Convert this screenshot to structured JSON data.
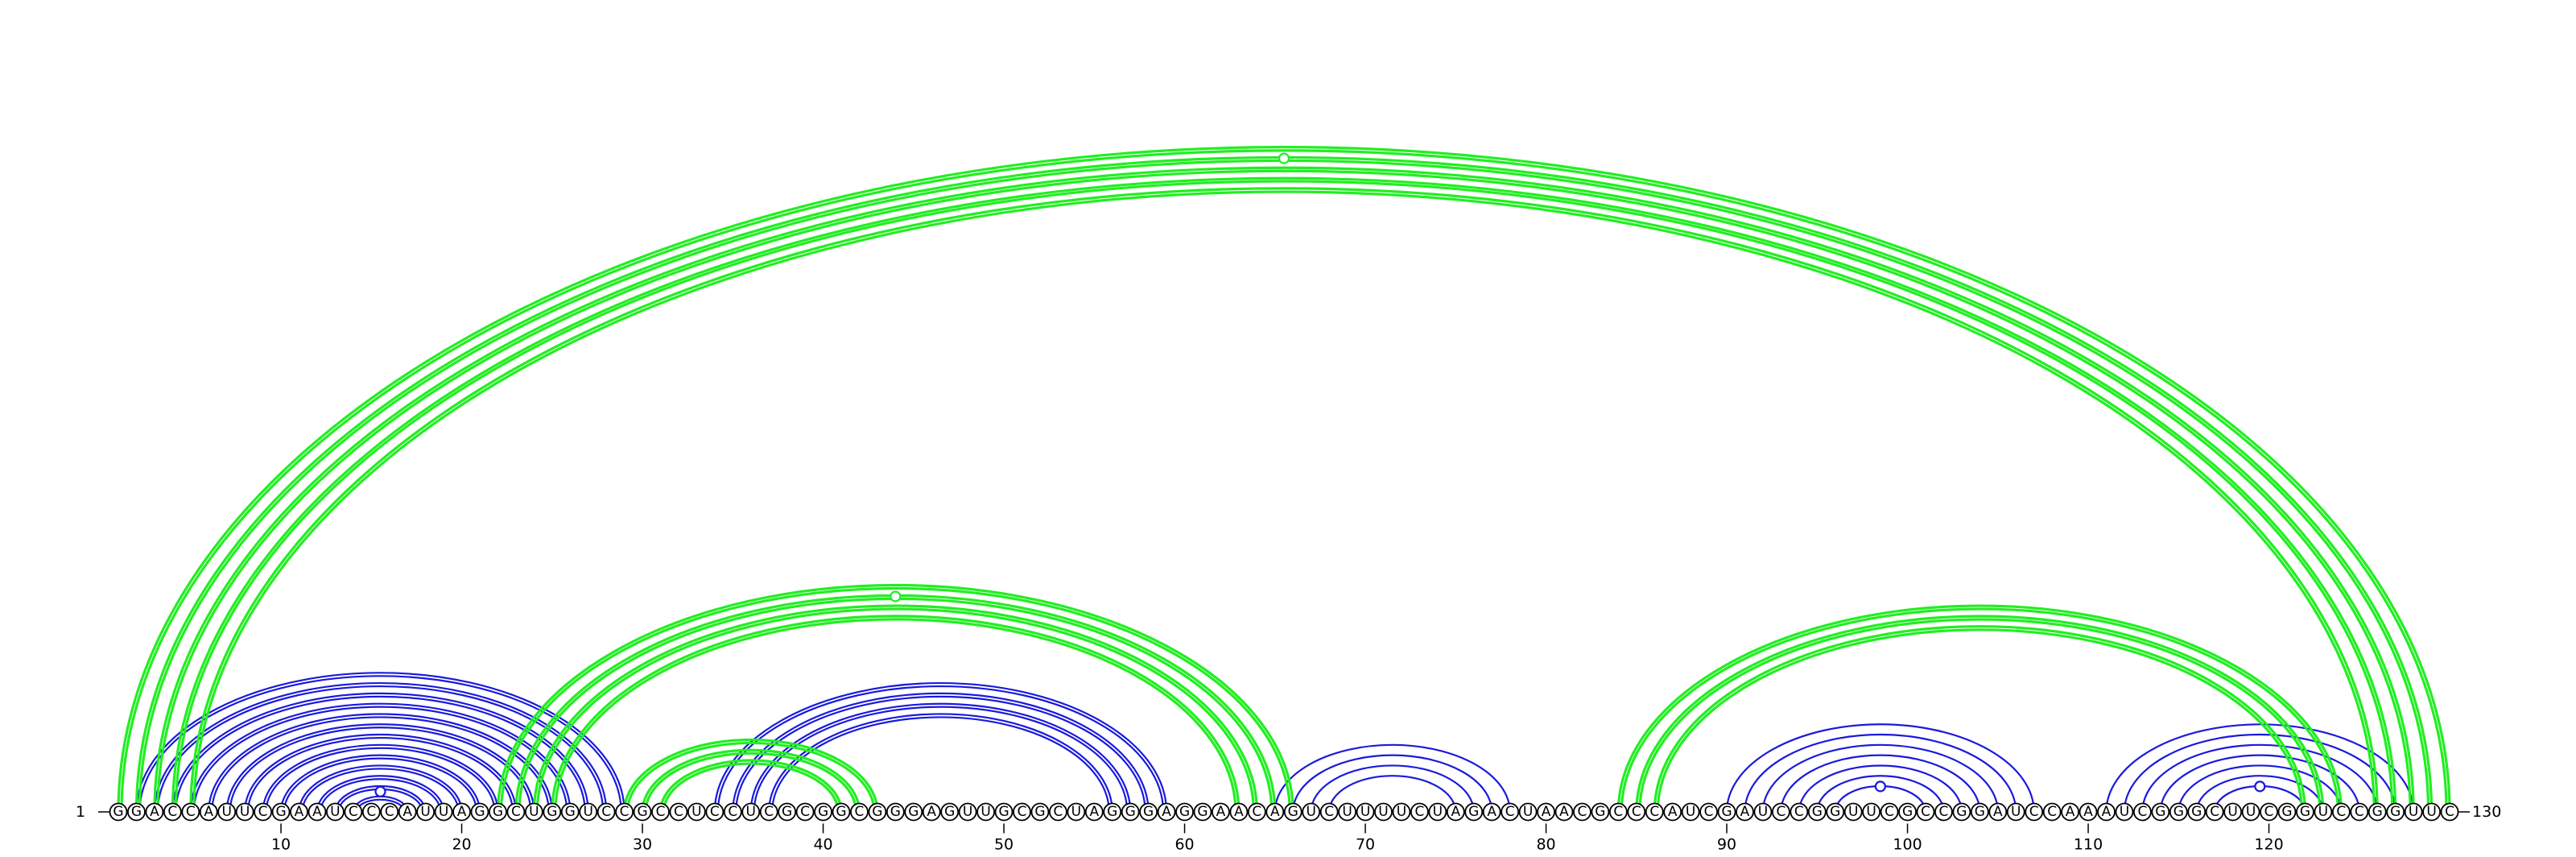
{
  "sequence": "GGACCAUUCGAAUCCCAUUAGGCUGGUCCGCCUCCUCGCGGCGGGAGUUGCGCUAGGGAGGAACAGUCUUUUCUAGACUAACGCCCAUCGAUCCGGUUCGCCGGAUCCAAAUCGGGCUUCGGUCCGGUUC",
  "start_label": "1",
  "end_label": "130",
  "ticks": [
    "10",
    "20",
    "30",
    "40",
    "50",
    "60",
    "70",
    "80",
    "90",
    "100",
    "110",
    "120"
  ],
  "colors": {
    "blue": "#1a1adc",
    "green": "#22ee22"
  },
  "arc_groups": [
    {
      "color": "blue",
      "outer": [
        2,
        29
      ],
      "inner": [
        14,
        17
      ],
      "double": true,
      "apex_marker": true
    },
    {
      "color": "blue",
      "outer": [
        34,
        59
      ],
      "inner": [
        38,
        56
      ],
      "double": true
    },
    {
      "color": "blue",
      "outer": [
        65,
        78
      ],
      "inner": [
        69,
        75
      ]
    },
    {
      "color": "blue",
      "outer": [
        90,
        107
      ],
      "inner": [
        96,
        100
      ],
      "apex_marker": true
    },
    {
      "color": "blue",
      "outer": [
        111,
        128
      ],
      "inner": [
        117,
        121
      ],
      "apex_marker": true
    },
    {
      "color": "green",
      "outer": [
        1,
        130
      ],
      "inner": [
        5,
        122
      ],
      "double": true,
      "apex_marker": true
    },
    {
      "color": "green",
      "outer": [
        22,
        66
      ],
      "inner": [
        25,
        63
      ],
      "double": true,
      "apex_marker": true
    },
    {
      "color": "green",
      "outer": [
        29,
        43
      ],
      "inner": [
        31,
        41
      ],
      "double": true
    },
    {
      "color": "green",
      "outer": [
        84,
        124
      ],
      "inner": [
        86,
        122
      ],
      "double": true
    }
  ]
}
